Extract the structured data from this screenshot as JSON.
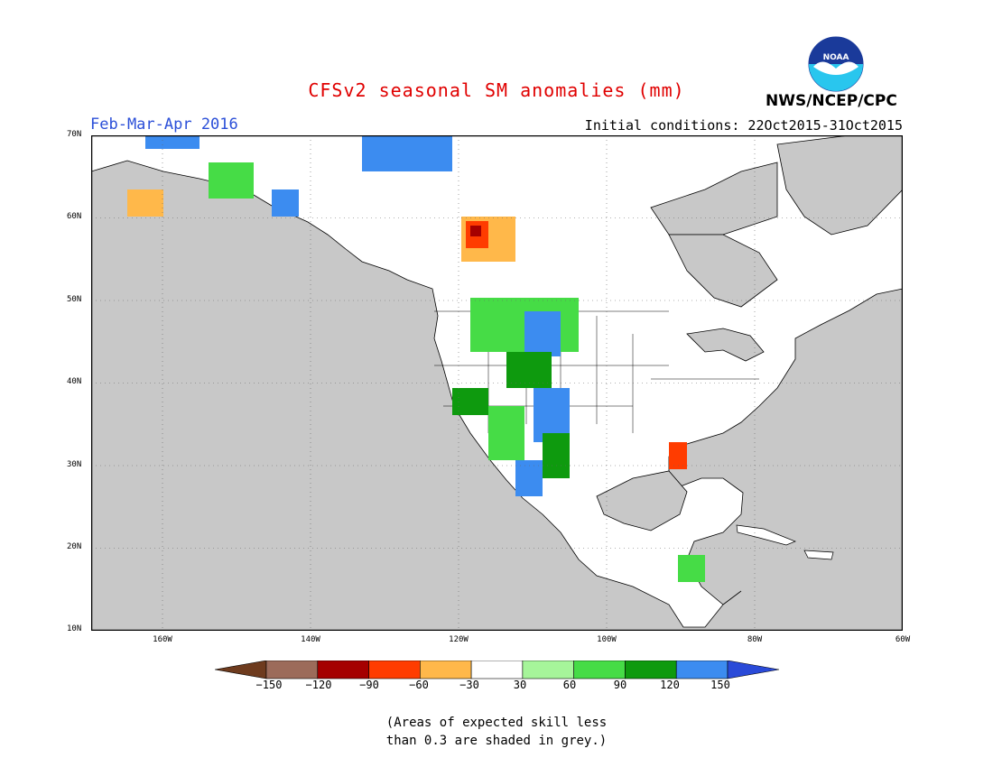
{
  "title": "CFSv2 seasonal SM anomalies (mm)",
  "period": "Feb-Mar-Apr 2016",
  "initial_conditions": "Initial conditions: 22Oct2015-31Oct2015",
  "agency": "NWS/NCEP/CPC",
  "logo_text": "NOAA",
  "map": {
    "lat_labels": [
      "70N",
      "60N",
      "50N",
      "40N",
      "30N",
      "20N",
      "10N"
    ],
    "lon_labels": [
      "160W",
      "140W",
      "120W",
      "100W",
      "80W",
      "60W"
    ],
    "colors": {
      "ocean": "#c8c8c8",
      "land_skill": "#c8c8c8",
      "land_nodata": "#ffffff",
      "boundary": "#000000",
      "grid": "#666666"
    }
  },
  "colorbar": {
    "labels": [
      "−150",
      "−120",
      "−90",
      "−60",
      "−30",
      "30",
      "60",
      "90",
      "120",
      "150"
    ],
    "colors": [
      "#6e3b1e",
      "#9c6b5a",
      "#a50000",
      "#ff3c00",
      "#ffb84a",
      "#ffffff",
      "#a6f59a",
      "#46dc46",
      "#0e9a0e",
      "#3c8cf0",
      "#2a4ad8"
    ]
  },
  "note_line1": "(Areas of expected skill less",
  "note_line2": "than 0.3 are shaded in grey.)"
}
